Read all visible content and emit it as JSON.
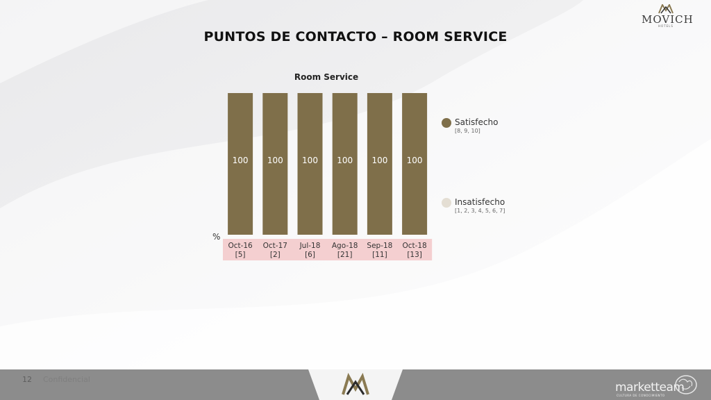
{
  "brand": {
    "name": "MOVICH",
    "subtitle": "HOTELS"
  },
  "title": "PUNTOS DE CONTACTO – ROOM SERVICE",
  "footer": {
    "page_number": "12",
    "confidential": "Confidencial",
    "company": "marketteam",
    "company_sub": "CULTURA DE CONOCIMIENTO"
  },
  "colors": {
    "satisfecho": "#7f6f4a",
    "insatisfecho": "#e4ded3",
    "category_band": "#f4cfd0"
  },
  "chart_data": {
    "type": "bar",
    "stacked": true,
    "title": "Room Service",
    "ylabel": "%",
    "ylim": [
      0,
      100
    ],
    "categories": [
      "Oct-16",
      "Oct-17",
      "Jul-18",
      "Ago-18",
      "Sep-18",
      "Oct-18"
    ],
    "category_counts": [
      "[5]",
      "[2]",
      "[6]",
      "[21]",
      "[11]",
      "[13]"
    ],
    "series": [
      {
        "name": "Satisfecho",
        "range": "[8, 9, 10]",
        "values": [
          100,
          100,
          100,
          100,
          100,
          100
        ]
      },
      {
        "name": "Insatisfecho",
        "range": "[1, 2, 3, 4, 5, 6, 7]",
        "values": [
          0,
          0,
          0,
          0,
          0,
          0
        ]
      }
    ],
    "data_labels": [
      "100",
      "100",
      "100",
      "100",
      "100",
      "100"
    ],
    "legend_position": "right"
  }
}
